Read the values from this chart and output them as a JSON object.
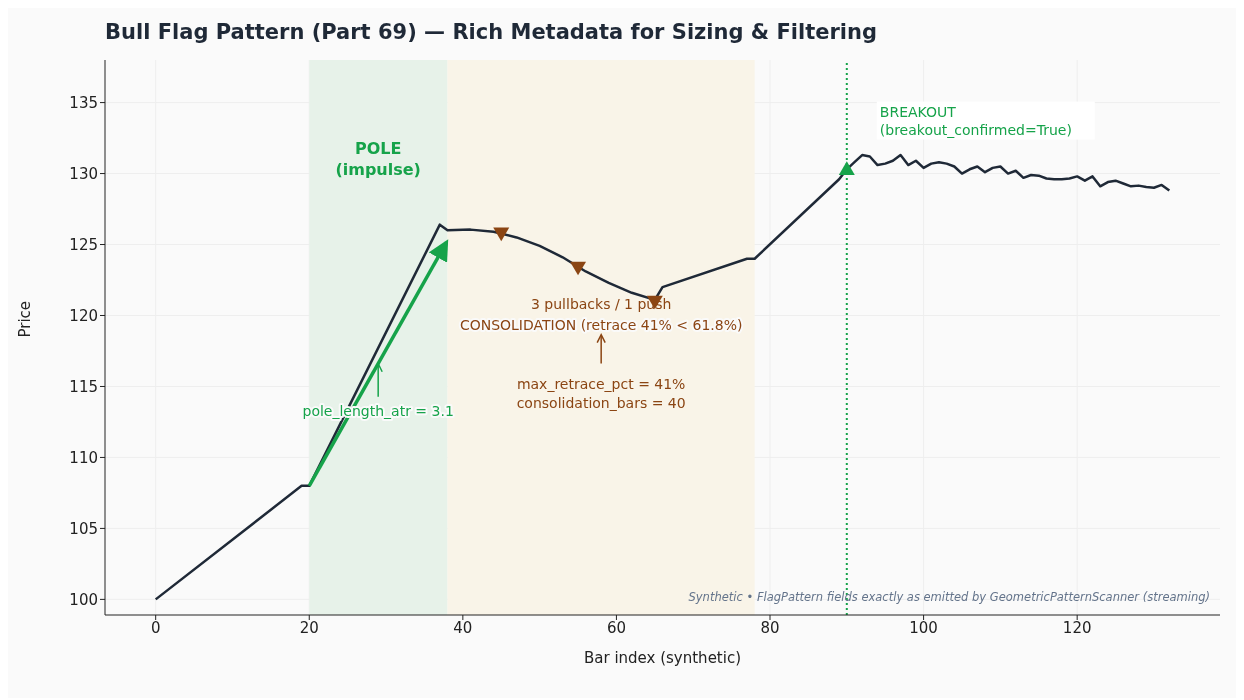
{
  "chart_data": {
    "type": "line",
    "title": "Bull Flag Pattern (Part 69) — Rich Metadata for Sizing & Filtering",
    "xlabel": "Bar index (synthetic)",
    "ylabel": "Price",
    "xlim": [
      -6.6,
      138.6
    ],
    "xticks": [
      0,
      20,
      40,
      60,
      80,
      100,
      120
    ],
    "ylim": [
      98.9,
      138
    ],
    "yticks": [
      100,
      105,
      110,
      115,
      120,
      125,
      130,
      135
    ],
    "grid": true,
    "line_style": "solid",
    "series": [
      {
        "color": "#1f2937",
        "marker": "none",
        "x": [
          0,
          19,
          20,
          37,
          38,
          41,
          44,
          47,
          50,
          53,
          56,
          59,
          62,
          65,
          66,
          77,
          78,
          89,
          90,
          91,
          92,
          93,
          94,
          95,
          96,
          97,
          98,
          99,
          100,
          101,
          102,
          103,
          104,
          105,
          106,
          107,
          108,
          109,
          110,
          111,
          112,
          113,
          114,
          115,
          116,
          117,
          118,
          119,
          120,
          121,
          122,
          123,
          124,
          125,
          126,
          127,
          128,
          129,
          130,
          131,
          132
        ],
        "values": [
          100,
          108,
          108,
          126.4,
          126.0,
          126.05,
          125.9,
          125.5,
          124.9,
          124.1,
          123.1,
          122.3,
          121.6,
          121.1,
          122.0,
          124.0,
          124.0,
          129.6,
          130.3,
          130.8,
          131.3,
          131.2,
          130.6,
          130.7,
          130.9,
          131.3,
          130.6,
          130.9,
          130.4,
          130.7,
          130.8,
          130.7,
          130.5,
          130.0,
          130.3,
          130.5,
          130.1,
          130.4,
          130.5,
          130.0,
          130.2,
          129.7,
          129.9,
          129.85,
          129.65,
          129.6,
          129.6,
          129.65,
          129.8,
          129.5,
          129.8,
          129.1,
          129.4,
          129.5,
          129.3,
          129.1,
          129.15,
          129.05,
          129.0,
          129.2,
          128.8
        ]
      },
      {
        "type": "scatter",
        "color": "#8b4513",
        "marker": "triangle-down",
        "x": [
          45,
          55,
          65
        ],
        "values": [
          125.8,
          123.4,
          121.0
        ]
      },
      {
        "type": "scatter",
        "color": "#16a34a",
        "marker": "triangle",
        "x": [
          90
        ],
        "values": [
          130.3
        ]
      }
    ],
    "bands": [
      {
        "axis": "x",
        "from": 20,
        "to": 38,
        "color": "#e7f2e9"
      },
      {
        "axis": "x",
        "from": 38,
        "to": 78,
        "color": "#f9f4e8"
      }
    ],
    "ref_lines": [
      {
        "axis": "x",
        "value": 90,
        "label": "BREAKOUT\n(breakout_confirmed=True)",
        "color": "#16a34a",
        "line_style": "dotted"
      }
    ],
    "annotations": [
      "POLE\n(impulse)",
      "pole_length_atr = 3.1",
      "3 pullbacks / 1 push",
      "CONSOLIDATION (retrace 41% < 61.8%)",
      "max_retrace_pct = 41%\nconsolidation_bars = 40",
      "Synthetic • FlagPattern fields exactly as emitted by GeometricPatternScanner (streaming)"
    ]
  }
}
